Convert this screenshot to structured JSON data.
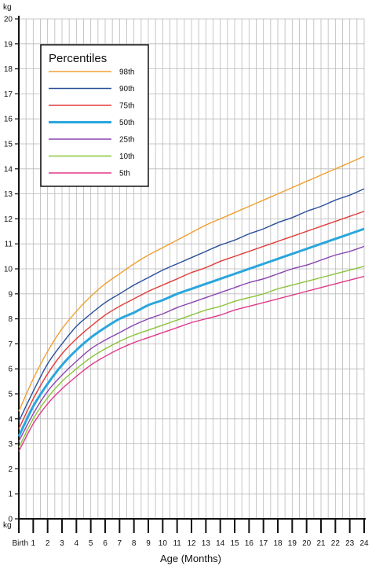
{
  "chart_data": {
    "type": "line",
    "title": "",
    "xlabel": "Age (Months)",
    "ylabel_unit": "kg",
    "xlim": [
      0,
      24
    ],
    "ylim": [
      0,
      20
    ],
    "grid": true,
    "legend_position": "top-left",
    "legend_title": "Percentiles",
    "x_tick_labels": [
      "Birth",
      "1",
      "2",
      "3",
      "4",
      "5",
      "6",
      "7",
      "8",
      "9",
      "10",
      "11",
      "12",
      "13",
      "14",
      "15",
      "16",
      "17",
      "18",
      "19",
      "20",
      "21",
      "22",
      "23",
      "24"
    ],
    "y_tick_labels": [
      "0",
      "1",
      "2",
      "3",
      "4",
      "5",
      "6",
      "7",
      "8",
      "9",
      "10",
      "11",
      "12",
      "13",
      "14",
      "15",
      "16",
      "17",
      "18",
      "19",
      "20"
    ],
    "x": [
      0,
      1,
      2,
      3,
      4,
      5,
      6,
      7,
      8,
      9,
      10,
      11,
      12,
      13,
      14,
      15,
      16,
      17,
      18,
      19,
      20,
      21,
      22,
      23,
      24
    ],
    "series": [
      {
        "name": "98th",
        "color": "#f0a030",
        "values": [
          4.3,
          5.6,
          6.7,
          7.6,
          8.3,
          8.9,
          9.4,
          9.8,
          10.2,
          10.55,
          10.85,
          11.15,
          11.45,
          11.75,
          12.0,
          12.25,
          12.5,
          12.75,
          13.0,
          13.25,
          13.5,
          13.75,
          14.0,
          14.25,
          14.5
        ]
      },
      {
        "name": "90th",
        "color": "#2a4f9a",
        "values": [
          3.9,
          5.1,
          6.2,
          7.0,
          7.7,
          8.2,
          8.65,
          9.0,
          9.35,
          9.65,
          9.95,
          10.2,
          10.45,
          10.7,
          10.95,
          11.15,
          11.4,
          11.6,
          11.85,
          12.05,
          12.3,
          12.5,
          12.75,
          12.95,
          13.2
        ]
      },
      {
        "name": "75th",
        "color": "#e23a3a",
        "values": [
          3.6,
          4.8,
          5.8,
          6.6,
          7.2,
          7.7,
          8.15,
          8.5,
          8.8,
          9.1,
          9.35,
          9.6,
          9.85,
          10.05,
          10.3,
          10.5,
          10.7,
          10.9,
          11.1,
          11.3,
          11.5,
          11.7,
          11.9,
          12.1,
          12.3
        ]
      },
      {
        "name": "50th",
        "color": "#2aa6dc",
        "values": [
          3.3,
          4.5,
          5.4,
          6.15,
          6.75,
          7.25,
          7.65,
          8.0,
          8.25,
          8.55,
          8.75,
          9.0,
          9.2,
          9.4,
          9.6,
          9.8,
          10.0,
          10.2,
          10.4,
          10.6,
          10.8,
          11.0,
          11.2,
          11.4,
          11.6
        ]
      },
      {
        "name": "25th",
        "color": "#8a44b0",
        "values": [
          3.1,
          4.2,
          5.1,
          5.75,
          6.3,
          6.8,
          7.15,
          7.45,
          7.75,
          8.0,
          8.2,
          8.45,
          8.65,
          8.85,
          9.05,
          9.25,
          9.45,
          9.6,
          9.8,
          10.0,
          10.15,
          10.35,
          10.55,
          10.7,
          10.9
        ]
      },
      {
        "name": "10th",
        "color": "#8ac43a",
        "values": [
          2.85,
          4.0,
          4.85,
          5.5,
          6.0,
          6.45,
          6.8,
          7.1,
          7.35,
          7.55,
          7.75,
          7.95,
          8.15,
          8.35,
          8.5,
          8.7,
          8.85,
          9.0,
          9.2,
          9.35,
          9.5,
          9.65,
          9.8,
          9.95,
          10.1
        ]
      },
      {
        "name": "5th",
        "color": "#e03a8a",
        "values": [
          2.7,
          3.8,
          4.6,
          5.2,
          5.7,
          6.15,
          6.5,
          6.8,
          7.05,
          7.25,
          7.45,
          7.65,
          7.85,
          8.0,
          8.15,
          8.35,
          8.5,
          8.65,
          8.8,
          8.95,
          9.1,
          9.25,
          9.4,
          9.55,
          9.7
        ]
      }
    ]
  }
}
